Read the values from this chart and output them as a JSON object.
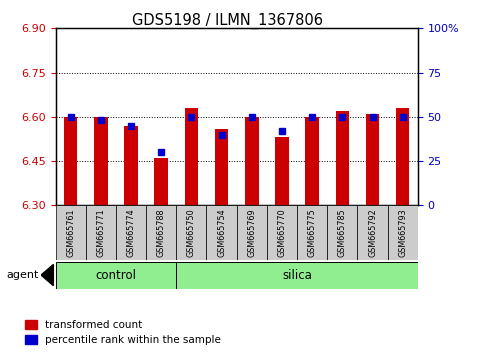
{
  "title": "GDS5198 / ILMN_1367806",
  "samples": [
    "GSM665761",
    "GSM665771",
    "GSM665774",
    "GSM665788",
    "GSM665750",
    "GSM665754",
    "GSM665769",
    "GSM665770",
    "GSM665775",
    "GSM665785",
    "GSM665792",
    "GSM665793"
  ],
  "groups": [
    "control",
    "control",
    "control",
    "control",
    "silica",
    "silica",
    "silica",
    "silica",
    "silica",
    "silica",
    "silica",
    "silica"
  ],
  "red_values": [
    6.6,
    6.6,
    6.57,
    6.46,
    6.63,
    6.56,
    6.6,
    6.53,
    6.6,
    6.62,
    6.61,
    6.63
  ],
  "blue_percentile": [
    50,
    48,
    45,
    30,
    50,
    40,
    50,
    42,
    50,
    50,
    50,
    50
  ],
  "ymin": 6.3,
  "ymax": 6.9,
  "yticks": [
    6.3,
    6.45,
    6.6,
    6.75,
    6.9
  ],
  "y2ticks": [
    0,
    25,
    50,
    75,
    100
  ],
  "y2labels": [
    "0",
    "25",
    "50",
    "75",
    "100%"
  ],
  "control_color": "#90EE90",
  "silica_color": "#90EE90",
  "bar_color": "#cc0000",
  "blue_color": "#0000cc",
  "tick_color_left": "#cc0000",
  "tick_color_right": "#0000cc",
  "legend_red_label": "transformed count",
  "legend_blue_label": "percentile rank within the sample",
  "agent_label": "agent",
  "group_label_control": "control",
  "group_label_silica": "silica",
  "n_control": 4,
  "n_total": 12
}
